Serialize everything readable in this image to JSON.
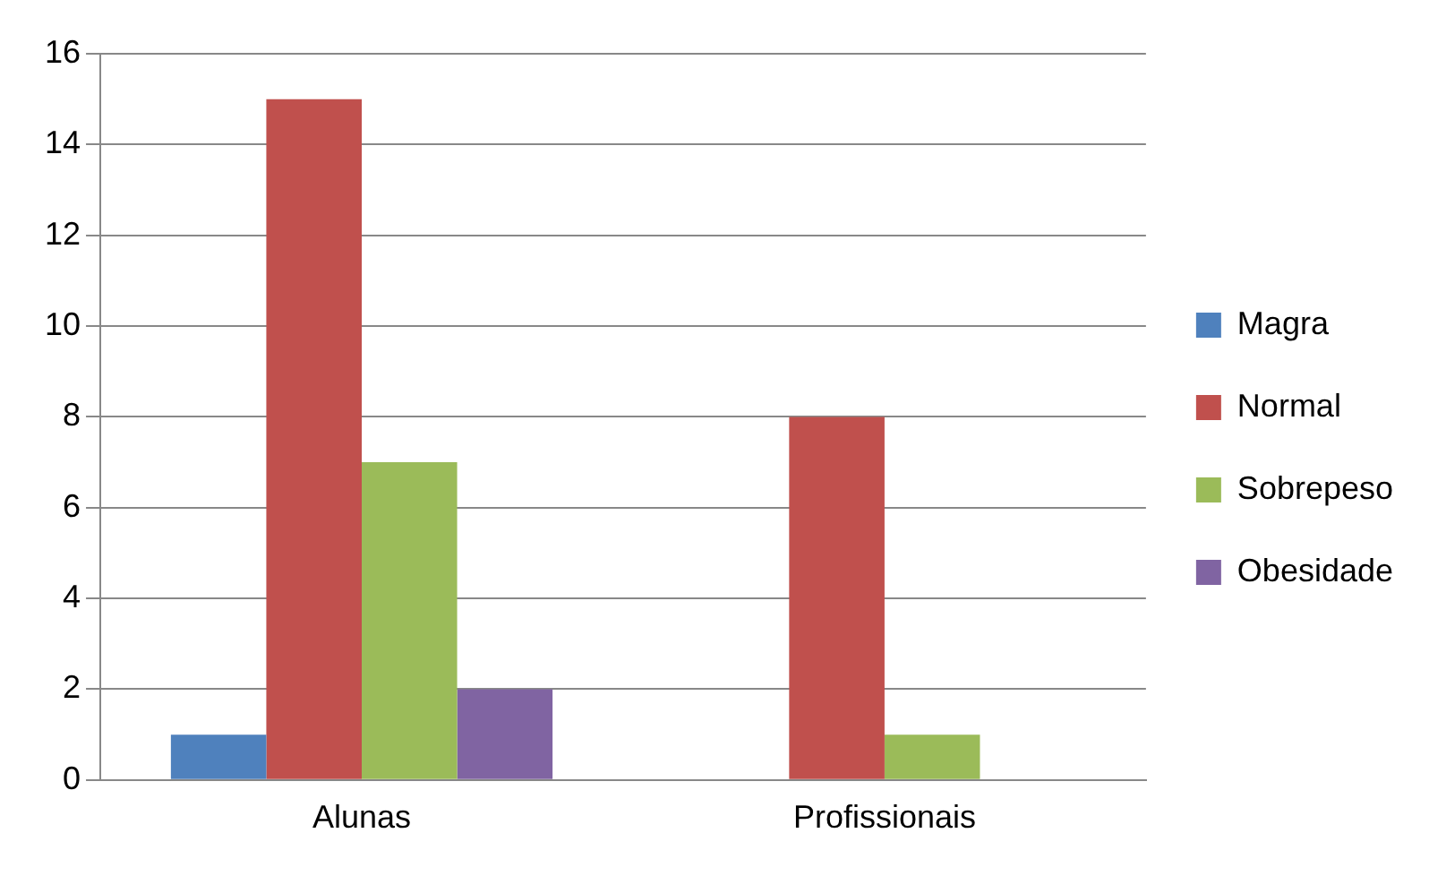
{
  "chart_data": {
    "type": "bar",
    "categories": [
      "Alunas",
      "Profissionais"
    ],
    "series": [
      {
        "name": "Magra",
        "color": "#4f81bd",
        "values": [
          1,
          0
        ]
      },
      {
        "name": "Normal",
        "color": "#c0504d",
        "values": [
          15,
          8
        ]
      },
      {
        "name": "Sobrepeso",
        "color": "#9bbb59",
        "values": [
          7,
          1
        ]
      },
      {
        "name": "Obesidade",
        "color": "#8064a2",
        "values": [
          2,
          0
        ]
      }
    ],
    "ylim": [
      0,
      16
    ],
    "yticks": [
      0,
      2,
      4,
      6,
      8,
      10,
      12,
      14,
      16
    ],
    "grid": "y",
    "legend": "right"
  }
}
